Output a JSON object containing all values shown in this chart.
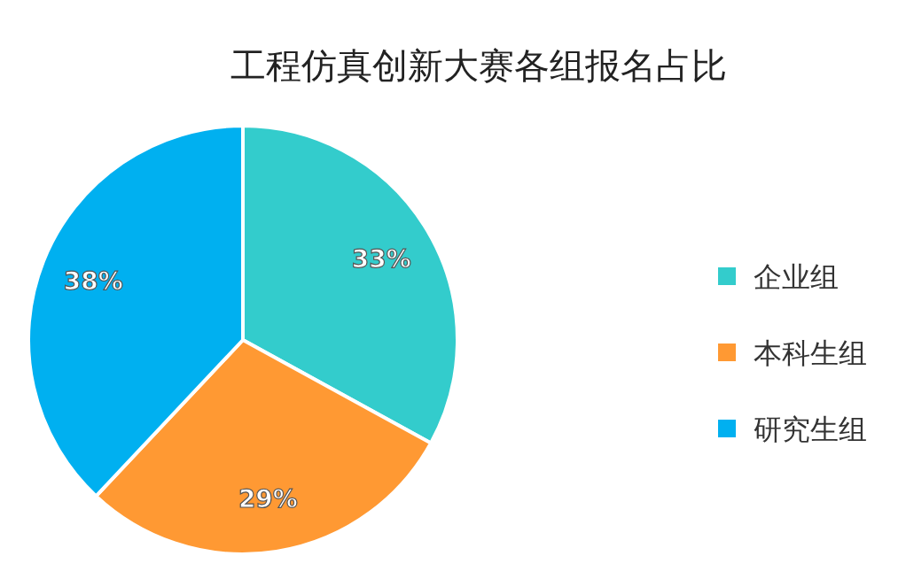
{
  "chart_data": {
    "type": "pie",
    "title": "工程仿真创新大赛各组报名占比",
    "categories": [
      "企业组",
      "本科生组",
      "研究生组"
    ],
    "values": [
      33,
      29,
      38
    ],
    "colors": [
      "#33cccc",
      "#ff9933",
      "#00b0f0"
    ],
    "value_labels": [
      "33%",
      "29%",
      "38%"
    ],
    "legend": "right"
  }
}
